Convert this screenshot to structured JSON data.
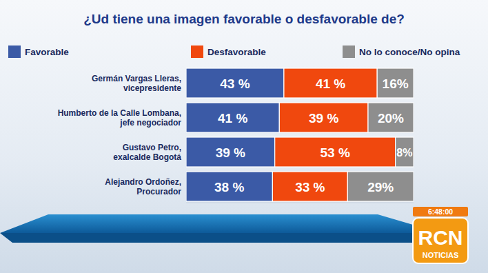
{
  "chart_data": {
    "type": "bar",
    "orientation": "horizontal",
    "stacked": true,
    "data_labels": true,
    "tick_labels": false,
    "title": "¿Ud tiene una imagen favorable o desfavorable de?",
    "categories": [
      "Germán Vargas Lleras, vicepresidente",
      "Humberto de la Calle Lombana, jefe negociador",
      "Gustavo Petro, exalcalde Bogotá",
      "Alejandro Ordoñez, Procurador"
    ],
    "series": [
      {
        "name": "Favorable",
        "color": "#3b5aa6",
        "values": [
          43,
          41,
          39,
          38
        ],
        "value_labels": [
          "43 %",
          "41 %",
          "39 %",
          "38 %"
        ]
      },
      {
        "name": "Desfavorable",
        "color": "#f0480e",
        "values": [
          41,
          39,
          53,
          33
        ],
        "value_labels": [
          "41 %",
          "39 %",
          "53 %",
          "33 %"
        ]
      },
      {
        "name": "No lo conoce/No opina",
        "color": "#8e8e8e",
        "values": [
          16,
          20,
          8,
          29
        ],
        "value_labels": [
          "16%",
          "20%",
          "8%",
          "29%"
        ]
      }
    ],
    "xlim": [
      0,
      100
    ],
    "legend": "top",
    "annotations": [
      "6:48:00",
      "RCN",
      "NOTICIAS"
    ]
  }
}
